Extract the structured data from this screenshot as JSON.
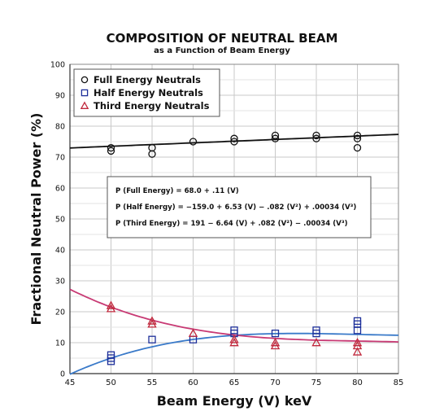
{
  "title": "COMPOSITION OF NEUTRAL BEAM",
  "subtitle": "as a Function of Beam Energy",
  "chart_data": {
    "type": "scatter",
    "title": "COMPOSITION OF NEUTRAL BEAM",
    "subtitle": "as a Function of Beam Energy",
    "xlabel": "Beam Energy  (V)  keV",
    "ylabel": "Fractional Neutral Power  (%)",
    "xlim": [
      45,
      85
    ],
    "ylim": [
      0,
      100
    ],
    "xticks": [
      45,
      50,
      55,
      60,
      65,
      70,
      75,
      80,
      85
    ],
    "yticks": [
      0,
      10,
      20,
      30,
      40,
      50,
      60,
      70,
      80,
      90,
      100
    ],
    "grid": true,
    "legend_position": "top-left",
    "series": [
      {
        "name": "Full Energy Neutrals",
        "marker": "circle",
        "color": "#111111",
        "points": [
          [
            50,
            73
          ],
          [
            50,
            72
          ],
          [
            55,
            73
          ],
          [
            55,
            71
          ],
          [
            60,
            75
          ],
          [
            65,
            75
          ],
          [
            65,
            76
          ],
          [
            70,
            77
          ],
          [
            70,
            76
          ],
          [
            75,
            77
          ],
          [
            75,
            76
          ],
          [
            80,
            77
          ],
          [
            80,
            76
          ],
          [
            80,
            73
          ]
        ],
        "fit_color": "#111111"
      },
      {
        "name": "Half Energy Neutrals",
        "marker": "square",
        "color": "#1d2f9a",
        "points": [
          [
            50,
            6
          ],
          [
            50,
            5
          ],
          [
            50,
            4
          ],
          [
            55,
            11
          ],
          [
            60,
            11
          ],
          [
            65,
            14
          ],
          [
            65,
            13
          ],
          [
            70,
            13
          ],
          [
            75,
            14
          ],
          [
            75,
            13
          ],
          [
            80,
            17
          ],
          [
            80,
            16
          ],
          [
            80,
            14
          ]
        ],
        "fit_color": "#3a7ac9"
      },
      {
        "name": "Third Energy Neutrals",
        "marker": "triangle",
        "color": "#c0283c",
        "points": [
          [
            50,
            22
          ],
          [
            50,
            21
          ],
          [
            55,
            17
          ],
          [
            55,
            16
          ],
          [
            60,
            13
          ],
          [
            65,
            11
          ],
          [
            65,
            10
          ],
          [
            70,
            10
          ],
          [
            70,
            9
          ],
          [
            75,
            10
          ],
          [
            80,
            10
          ],
          [
            80,
            9
          ],
          [
            80,
            7
          ]
        ],
        "fit_color": "#c83a74"
      }
    ],
    "equations": [
      "P (Full Energy) = 68.0 + .11 (V)",
      "P (Half Energy) = −159.0 + 6.53 (V) − .082 (V²) + .00034 (V³)",
      "P (Third Energy) = 191 − 6.64 (V) + .082 (V²) − .00034 (V³)"
    ]
  }
}
